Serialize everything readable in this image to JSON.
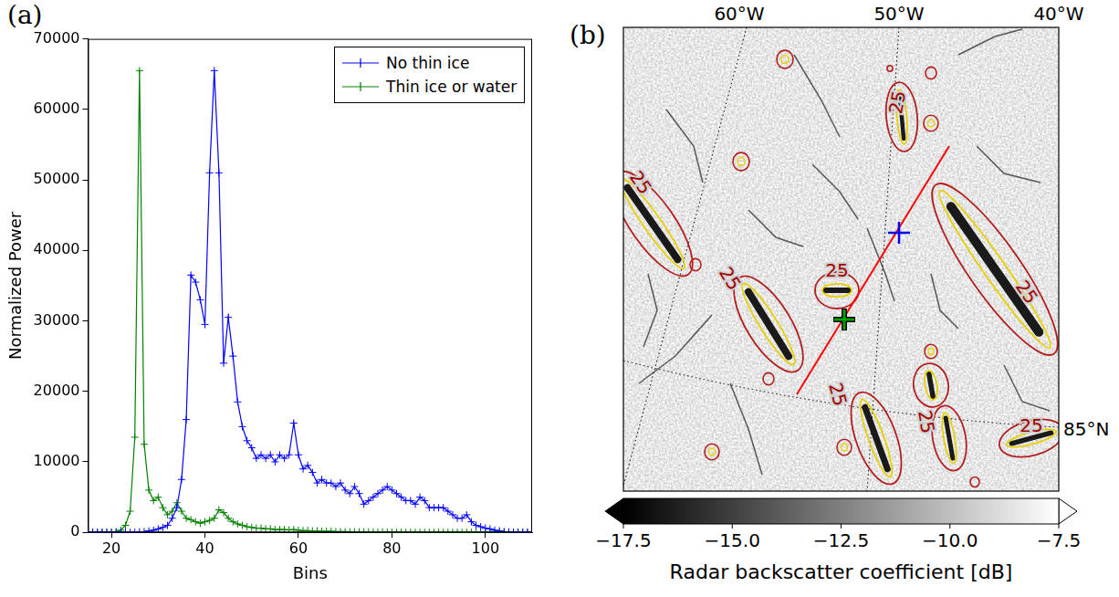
{
  "chart_data": [
    {
      "type": "line",
      "panel": "(a)",
      "xlabel": "Bins",
      "ylabel": "Normalized Power",
      "x": [
        15,
        16,
        17,
        18,
        19,
        20,
        21,
        22,
        23,
        24,
        25,
        26,
        27,
        28,
        29,
        30,
        31,
        32,
        33,
        34,
        35,
        36,
        37,
        38,
        39,
        40,
        41,
        42,
        43,
        44,
        45,
        46,
        47,
        48,
        49,
        50,
        51,
        52,
        53,
        54,
        55,
        56,
        57,
        58,
        59,
        60,
        61,
        62,
        63,
        64,
        65,
        66,
        67,
        68,
        69,
        70,
        71,
        72,
        73,
        74,
        75,
        76,
        77,
        78,
        79,
        80,
        81,
        82,
        83,
        84,
        85,
        86,
        87,
        88,
        89,
        90,
        91,
        92,
        93,
        94,
        95,
        96,
        97,
        98,
        99,
        100,
        101,
        102,
        103,
        104,
        105,
        106,
        107,
        108,
        109,
        110
      ],
      "series": [
        {
          "name": "No thin ice",
          "color": "#0000ff",
          "values": [
            0,
            0,
            0,
            0,
            0,
            0,
            0,
            0,
            0,
            0,
            0,
            50,
            100,
            200,
            300,
            500,
            700,
            1000,
            2000,
            3500,
            7500,
            16000,
            36500,
            35500,
            33000,
            29500,
            51000,
            65500,
            51000,
            24000,
            30500,
            25000,
            18500,
            15000,
            13000,
            12000,
            10500,
            11000,
            10500,
            11000,
            10000,
            11000,
            10500,
            11000,
            15500,
            11000,
            9000,
            9500,
            8500,
            7000,
            7500,
            7000,
            7000,
            6500,
            7000,
            6000,
            5500,
            6500,
            5500,
            4000,
            4500,
            5000,
            5500,
            6000,
            6500,
            6000,
            5500,
            5000,
            4500,
            4500,
            4000,
            5000,
            4500,
            3500,
            3500,
            3500,
            3500,
            3000,
            2500,
            2000,
            2000,
            2500,
            1500,
            1000,
            800,
            600,
            500,
            300,
            200,
            100,
            50,
            0,
            0,
            0,
            0,
            0
          ]
        },
        {
          "name": "Thin ice or water",
          "color": "#008000",
          "values": [
            0,
            0,
            0,
            0,
            0,
            0,
            100,
            300,
            1000,
            3000,
            13500,
            65500,
            12500,
            6000,
            4500,
            5000,
            3500,
            2500,
            3000,
            4200,
            3000,
            2000,
            1800,
            1500,
            1300,
            1500,
            1700,
            2000,
            3200,
            2800,
            2000,
            1500,
            1200,
            1000,
            800,
            700,
            600,
            600,
            500,
            500,
            400,
            400,
            400,
            350,
            400,
            300,
            250,
            250,
            200,
            200,
            150,
            150,
            150,
            100,
            100,
            100,
            80,
            80,
            60,
            60,
            50,
            50,
            40,
            30,
            20,
            20,
            0,
            0,
            0,
            0,
            0,
            0,
            0,
            0,
            0,
            0,
            0,
            0,
            0,
            0,
            0,
            0,
            0,
            0,
            0,
            0,
            0,
            0,
            0,
            0,
            0,
            0,
            0,
            0,
            0,
            0
          ]
        }
      ],
      "xlim": [
        15,
        110
      ],
      "xticks": [
        20,
        40,
        60,
        80,
        100
      ],
      "ylim": [
        0,
        70000
      ],
      "yticks": [
        0,
        10000,
        20000,
        30000,
        40000,
        50000,
        60000,
        70000
      ],
      "legend": "upper right",
      "grid": false,
      "marker": "+"
    },
    {
      "type": "map",
      "panel": "(b)",
      "x_labels": [
        "60°W",
        "50°W",
        "40°W"
      ],
      "y_labels": [
        "85°N"
      ],
      "contour_labels": [
        25,
        25,
        25,
        25,
        25,
        25,
        25,
        25
      ],
      "colorbar": {
        "label": "Radar backscatter coefficient [dB]",
        "range": [
          -17.5,
          -7.5
        ],
        "ticks": [
          {
            "value": -17.5,
            "label": "−17.5"
          },
          {
            "value": -15,
            "label": "−15.0"
          },
          {
            "value": -12.5,
            "label": "−12.5"
          },
          {
            "value": -10,
            "label": "−10.0"
          },
          {
            "value": -7.5,
            "label": "−7.5"
          }
        ]
      }
    }
  ]
}
